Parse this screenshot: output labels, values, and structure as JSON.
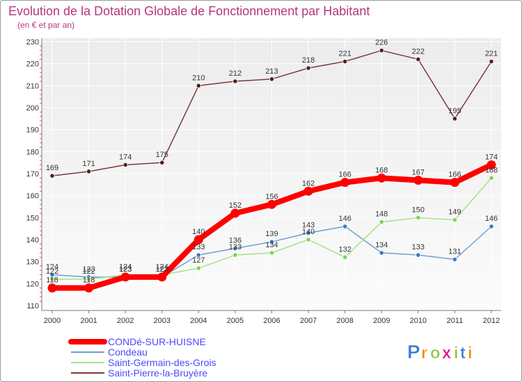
{
  "chart_data": {
    "type": "line",
    "title": "Evolution de la Dotation Globale de Fonctionnement par Habitant",
    "subtitle": "(en € et par an)",
    "x": [
      "2000",
      "2001",
      "2002",
      "2003",
      "2004",
      "2005",
      "2006",
      "2007",
      "2008",
      "2009",
      "2010",
      "2011",
      "2012"
    ],
    "ylim": [
      110,
      230
    ],
    "yticks": [
      110,
      120,
      130,
      140,
      150,
      160,
      170,
      180,
      190,
      200,
      210,
      220,
      230
    ],
    "grid": true,
    "series": [
      {
        "name": "CONDé-SUR-HUISNE",
        "color": "#ff0000",
        "values": [
          118,
          118,
          123,
          123,
          140,
          152,
          156,
          162,
          166,
          168,
          167,
          166,
          174
        ],
        "labels": [
          "118",
          "118",
          "123",
          "123",
          "140",
          "152",
          "156",
          "162",
          "166",
          "168",
          "167",
          "166",
          "174"
        ]
      },
      {
        "name": "Condeau",
        "color": "#6aa1d4",
        "marker_color": "#3f76c1",
        "values": [
          124,
          123,
          123,
          123,
          133,
          136,
          139,
          143,
          146,
          134,
          133,
          131,
          146
        ],
        "labels": [
          "124",
          "123",
          "123",
          "123",
          "133",
          "136",
          "139",
          "143",
          "146",
          "134",
          "133",
          "131",
          "146"
        ]
      },
      {
        "name": "Saint-Germain-des-Grois",
        "color": "#a8e086",
        "marker_color": "#7fd356",
        "values": [
          122,
          122,
          124,
          124,
          127,
          133,
          134,
          140,
          132,
          148,
          150,
          149,
          168
        ],
        "labels": [
          "122",
          "122",
          "124",
          "124",
          "127",
          "133",
          "134",
          "140",
          "132",
          "148",
          "150",
          "149",
          "168"
        ]
      },
      {
        "name": "Saint-Pierre-la-Bruyère",
        "color": "#7a3a3a",
        "marker_color": "#5a1e1e",
        "values": [
          169,
          171,
          174,
          175,
          210,
          212,
          213,
          218,
          221,
          226,
          222,
          195,
          221
        ],
        "labels": [
          "169",
          "171",
          "174",
          "175",
          "210",
          "212",
          "213",
          "218",
          "221",
          "226",
          "222",
          "195",
          "221"
        ]
      }
    ],
    "legend": [
      "CONDé-SUR-HUISNE",
      "Condeau",
      "Saint-Germain-des-Grois",
      "Saint-Pierre-la-Bruyère"
    ],
    "legend_position": "bottom-left"
  },
  "brand": {
    "letters": [
      "P",
      "r",
      "o",
      "x",
      "i",
      "t",
      "i"
    ],
    "colors": [
      "#3a7bd5",
      "#f08a00",
      "#8cc63f",
      "#e5007e",
      "#8cc63f",
      "#3a7bd5",
      "#f08a00"
    ]
  },
  "colors": {
    "title": "#b5377b",
    "axis_text": "#333333",
    "label_text": "#333333",
    "legend_text": "#4a4aff",
    "plot_bg_top": "#ececec",
    "plot_bg_bottom": "#fbfbfb",
    "grid": "#ffffff",
    "outer_border": "#9a9a9a"
  }
}
